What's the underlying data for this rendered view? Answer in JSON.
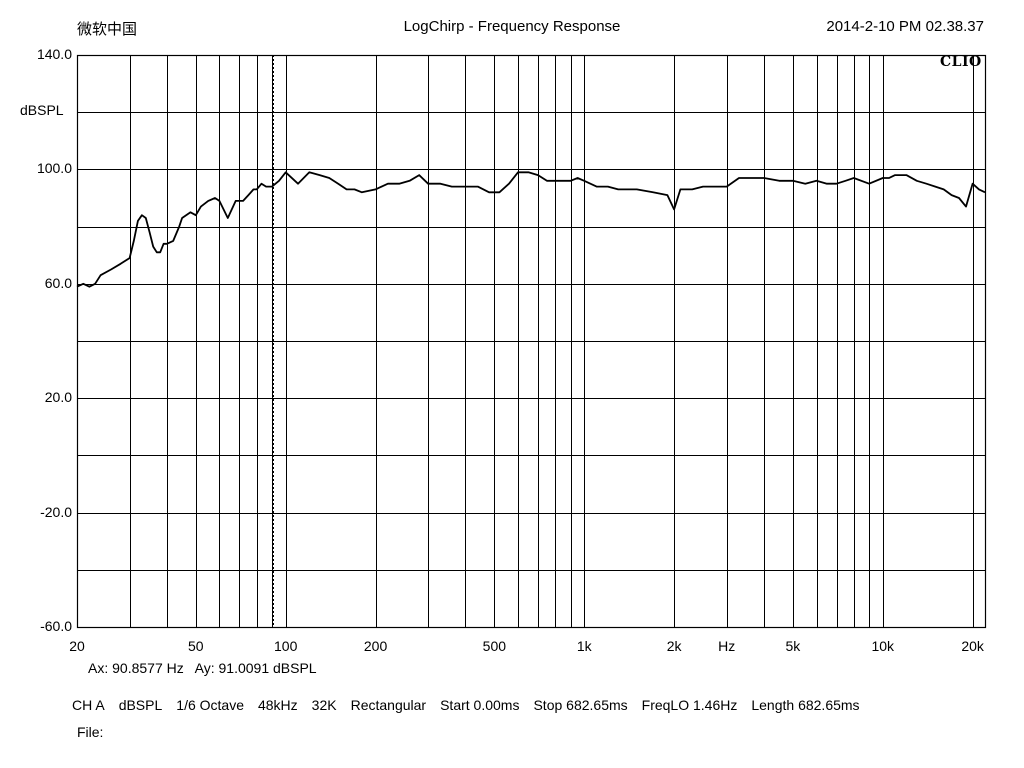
{
  "header": {
    "left": "微软中国",
    "title": "LogChirp - Frequency Response",
    "timestamp": "2014-2-10 PM 02.38.37"
  },
  "brand": "CLIO",
  "cursor": {
    "ax_label": "Ax: 90.8577 Hz",
    "ay_label": "Ay: 91.0091 dBSPL",
    "ax_value": 90.8577,
    "ay_value": 91.0091
  },
  "settings": [
    "CH A",
    "dBSPL",
    "1/6 Octave",
    "48kHz",
    "32K",
    "Rectangular",
    "Start 0.00ms",
    "Stop 682.65ms",
    "FreqLO 1.46Hz",
    "Length 682.65ms"
  ],
  "file_label": "File:",
  "chart_data": {
    "type": "line",
    "title": "LogChirp - Frequency Response",
    "xlabel": "Hz",
    "ylabel": "dBSPL",
    "xscale": "log",
    "xlim": [
      20,
      22000
    ],
    "ylim": [
      -60,
      140
    ],
    "grid": true,
    "y_tick_labels": [
      "140.0",
      "100.0",
      "60.0",
      "20.0",
      "-20.0",
      "-60.0"
    ],
    "x_tick_labels": [
      "20",
      "50",
      "100",
      "200",
      "500",
      "1k",
      "2k",
      "Hz",
      "5k",
      "10k",
      "20k"
    ],
    "series": [
      {
        "color": "#000000",
        "x": [
          20,
          21,
          22,
          23,
          24,
          26,
          28,
          30,
          31,
          32,
          33,
          34,
          35,
          36,
          37,
          38,
          39,
          40,
          42,
          44,
          45,
          48,
          50,
          52,
          55,
          58,
          60,
          64,
          68,
          72,
          75,
          78,
          80,
          83,
          86,
          90,
          95,
          100,
          110,
          120,
          130,
          140,
          150,
          160,
          170,
          180,
          200,
          220,
          240,
          260,
          280,
          300,
          330,
          360,
          400,
          440,
          480,
          520,
          560,
          600,
          650,
          700,
          750,
          800,
          850,
          900,
          950,
          1000,
          1100,
          1200,
          1300,
          1400,
          1500,
          1700,
          1900,
          2000,
          2100,
          2300,
          2500,
          2700,
          3000,
          3300,
          3600,
          4000,
          4500,
          5000,
          5500,
          6000,
          6500,
          7000,
          7500,
          8000,
          9000,
          10000,
          10500,
          11000,
          12000,
          13000,
          14000,
          15000,
          16000,
          17000,
          18000,
          19000,
          20000,
          21000,
          22000
        ],
        "y": [
          59,
          60,
          59,
          60,
          63,
          65,
          67,
          69,
          75,
          82,
          84,
          83,
          78,
          73,
          71,
          71,
          74,
          74,
          75,
          80,
          83,
          85,
          84,
          87,
          89,
          90,
          89,
          83,
          89,
          89,
          91,
          93,
          93,
          95,
          94,
          94,
          96,
          99,
          95,
          99,
          98,
          97,
          95,
          93,
          93,
          92,
          93,
          95,
          95,
          96,
          98,
          95,
          95,
          94,
          94,
          94,
          92,
          92,
          95,
          99,
          99,
          98,
          96,
          96,
          96,
          96,
          97,
          96,
          94,
          94,
          93,
          93,
          93,
          92,
          91,
          86,
          93,
          93,
          94,
          94,
          94,
          97,
          97,
          97,
          96,
          96,
          95,
          96,
          95,
          95,
          96,
          97,
          95,
          97,
          97,
          98,
          98,
          96,
          95,
          94,
          93,
          91,
          90,
          87,
          95,
          93,
          92
        ]
      }
    ],
    "cursor_frequency_hz": 90.8577
  }
}
